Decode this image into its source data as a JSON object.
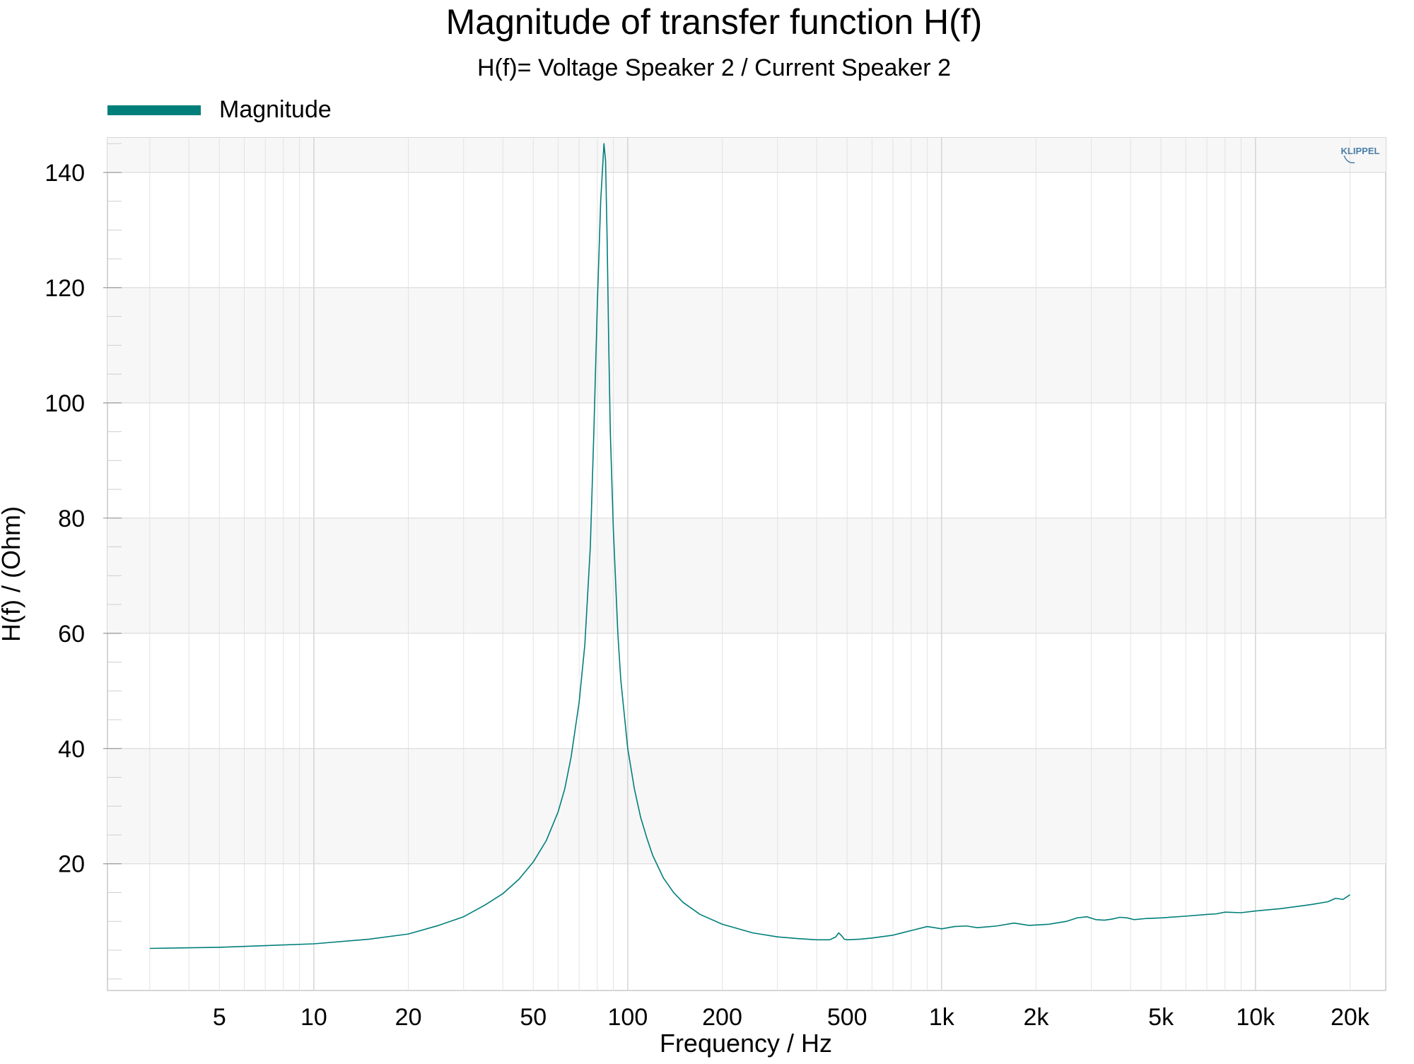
{
  "chart_data": {
    "type": "line",
    "title": "Magnitude of transfer function H(f)",
    "subtitle": "H(f)= Voltage Speaker 2 / Current Speaker 2",
    "xlabel": "Frequency / Hz",
    "ylabel": "H(f) / (Ohm)",
    "x_scale": "log",
    "xlim": [
      2.2,
      26000
    ],
    "ylim": [
      -2,
      146
    ],
    "grid": true,
    "legend_position": "top-left",
    "brand": "KLIPPEL",
    "x_ticks": [
      {
        "value": 5,
        "label": "5"
      },
      {
        "value": 10,
        "label": "10"
      },
      {
        "value": 20,
        "label": "20"
      },
      {
        "value": 50,
        "label": "50"
      },
      {
        "value": 100,
        "label": "100"
      },
      {
        "value": 200,
        "label": "200"
      },
      {
        "value": 500,
        "label": "500"
      },
      {
        "value": 1000,
        "label": "1k"
      },
      {
        "value": 2000,
        "label": "2k"
      },
      {
        "value": 5000,
        "label": "5k"
      },
      {
        "value": 10000,
        "label": "10k"
      },
      {
        "value": 20000,
        "label": "20k"
      }
    ],
    "y_ticks": [
      {
        "value": 20,
        "label": "20"
      },
      {
        "value": 40,
        "label": "40"
      },
      {
        "value": 60,
        "label": "60"
      },
      {
        "value": 80,
        "label": "80"
      },
      {
        "value": 100,
        "label": "100"
      },
      {
        "value": 120,
        "label": "120"
      },
      {
        "value": 140,
        "label": "140"
      }
    ],
    "series": [
      {
        "name": "Magnitude",
        "color": "#007f7a",
        "x": [
          3,
          5,
          10,
          15,
          20,
          25,
          30,
          35,
          40,
          45,
          50,
          55,
          60,
          63,
          66,
          70,
          73,
          76,
          78,
          80,
          82,
          84,
          85,
          86,
          87,
          88,
          90,
          93,
          95,
          100,
          105,
          110,
          115,
          120,
          130,
          140,
          150,
          170,
          200,
          250,
          300,
          350,
          400,
          440,
          460,
          470,
          480,
          490,
          500,
          550,
          600,
          700,
          800,
          900,
          950,
          1000,
          1100,
          1200,
          1300,
          1500,
          1700,
          1900,
          2200,
          2500,
          2700,
          2900,
          3100,
          3300,
          3500,
          3700,
          3900,
          4100,
          4500,
          5000,
          6000,
          7000,
          7500,
          8000,
          9000,
          10000,
          12000,
          15000,
          17000,
          18000,
          19000,
          20000
        ],
        "values": [
          5.3,
          5.5,
          6.1,
          6.9,
          7.8,
          9.3,
          10.8,
          12.8,
          14.8,
          17.3,
          20.3,
          24.0,
          29.0,
          33.0,
          38.5,
          48.0,
          58.0,
          75.0,
          95.0,
          117.0,
          135.0,
          145.0,
          142.0,
          128.0,
          110.0,
          95.0,
          78.0,
          60.0,
          52.0,
          40.0,
          33.0,
          28.0,
          24.5,
          21.5,
          17.5,
          15.0,
          13.3,
          11.2,
          9.5,
          8.0,
          7.3,
          7.0,
          6.8,
          6.8,
          7.3,
          8.0,
          7.5,
          6.9,
          6.8,
          6.9,
          7.1,
          7.6,
          8.4,
          9.1,
          8.9,
          8.7,
          9.1,
          9.2,
          8.9,
          9.2,
          9.7,
          9.3,
          9.5,
          10.0,
          10.6,
          10.8,
          10.3,
          10.2,
          10.4,
          10.7,
          10.6,
          10.3,
          10.5,
          10.6,
          10.9,
          11.2,
          11.3,
          11.6,
          11.5,
          11.8,
          12.2,
          12.9,
          13.4,
          14.0,
          13.8,
          14.6
        ]
      }
    ]
  }
}
